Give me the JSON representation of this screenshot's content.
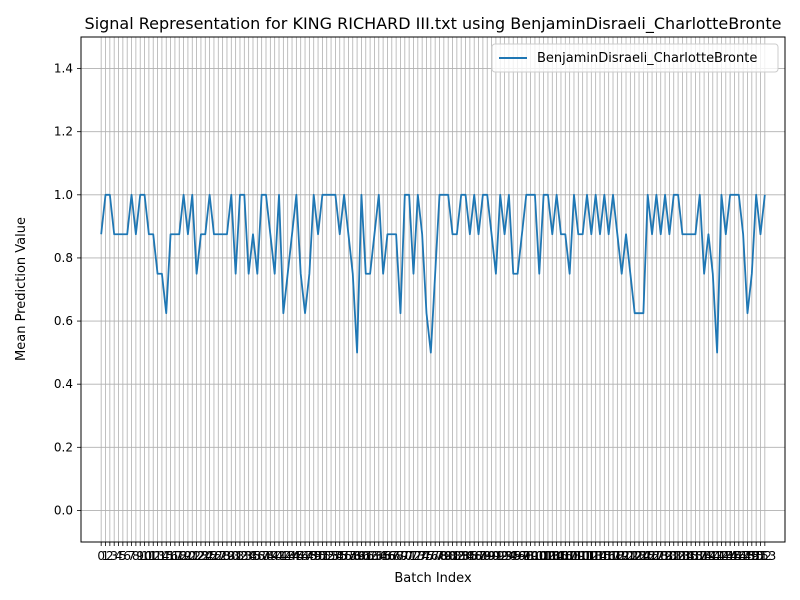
{
  "chart_data": {
    "type": "line",
    "title": "Signal Representation for KING RICHARD III.txt using BenjaminDisraeli_CharlotteBronte",
    "xlabel": "Batch Index",
    "ylabel": "Mean Prediction Value",
    "ylim": [
      -0.1,
      1.5
    ],
    "xlim": [
      -4.65,
      157.65
    ],
    "grid": true,
    "legend_position": "top-right",
    "y_ticks": [
      "0.0",
      "0.2",
      "0.4",
      "0.6",
      "0.8",
      "1.0",
      "1.2",
      "1.4"
    ],
    "y_tick_values": [
      0.0,
      0.2,
      0.4,
      0.6,
      0.8,
      1.0,
      1.2,
      1.4
    ],
    "line_color": "#1f77b4",
    "grid_color": "#b0b0b0",
    "series": [
      {
        "name": "BenjaminDisraeli_CharlotteBronte",
        "x": [
          0,
          1,
          2,
          3,
          4,
          5,
          6,
          7,
          8,
          9,
          10,
          11,
          12,
          13,
          14,
          15,
          16,
          17,
          18,
          19,
          20,
          21,
          22,
          23,
          24,
          25,
          26,
          27,
          28,
          29,
          30,
          31,
          32,
          33,
          34,
          35,
          36,
          37,
          38,
          39,
          40,
          41,
          42,
          43,
          44,
          45,
          46,
          47,
          48,
          49,
          50,
          51,
          52,
          53,
          54,
          55,
          56,
          57,
          58,
          59,
          60,
          61,
          62,
          63,
          64,
          65,
          66,
          67,
          68,
          69,
          70,
          71,
          72,
          73,
          74,
          75,
          76,
          77,
          78,
          79,
          80,
          81,
          82,
          83,
          84,
          85,
          86,
          87,
          88,
          89,
          90,
          91,
          92,
          93,
          94,
          95,
          96,
          97,
          98,
          99,
          100,
          101,
          102,
          103,
          104,
          105,
          106,
          107,
          108,
          109,
          110,
          111,
          112,
          113,
          114,
          115,
          116,
          117,
          118,
          119,
          120,
          121,
          122,
          123,
          124,
          125,
          126,
          127,
          128,
          129,
          130,
          131,
          132,
          133,
          134,
          135,
          136,
          137,
          138,
          139,
          140,
          141,
          142,
          143,
          144,
          145,
          146,
          147,
          148,
          149,
          150,
          151,
          152,
          153
        ],
        "y": [
          0.875,
          1.0,
          1.0,
          0.875,
          0.875,
          0.875,
          0.875,
          1.0,
          0.875,
          1.0,
          1.0,
          0.875,
          0.875,
          0.75,
          0.75,
          0.625,
          0.875,
          0.875,
          0.875,
          1.0,
          0.875,
          1.0,
          0.75,
          0.875,
          0.875,
          1.0,
          0.875,
          0.875,
          0.875,
          0.875,
          1.0,
          0.75,
          1.0,
          1.0,
          0.75,
          0.875,
          0.75,
          1.0,
          1.0,
          0.875,
          0.75,
          1.0,
          0.625,
          0.75,
          0.875,
          1.0,
          0.75,
          0.625,
          0.75,
          1.0,
          0.875,
          1.0,
          1.0,
          1.0,
          1.0,
          0.875,
          1.0,
          0.875,
          0.75,
          0.5,
          1.0,
          0.75,
          0.75,
          0.875,
          1.0,
          0.75,
          0.875,
          0.875,
          0.875,
          0.625,
          1.0,
          1.0,
          0.75,
          1.0,
          0.875,
          0.625,
          0.5,
          0.75,
          1.0,
          1.0,
          1.0,
          0.875,
          0.875,
          1.0,
          1.0,
          0.875,
          1.0,
          0.875,
          1.0,
          1.0,
          0.875,
          0.75,
          1.0,
          0.875,
          1.0,
          0.75,
          0.75,
          0.875,
          1.0,
          1.0,
          1.0,
          0.75,
          1.0,
          1.0,
          0.875,
          1.0,
          0.875,
          0.875,
          0.75,
          1.0,
          0.875,
          0.875,
          1.0,
          0.875,
          1.0,
          0.875,
          1.0,
          0.875,
          1.0,
          0.875,
          0.75,
          0.875,
          0.75,
          0.625,
          0.625,
          0.625,
          1.0,
          0.875,
          1.0,
          0.875,
          1.0,
          0.875,
          1.0,
          1.0,
          0.875,
          0.875,
          0.875,
          0.875,
          1.0,
          0.75,
          0.875,
          0.75,
          0.5,
          1.0,
          0.875,
          1.0,
          1.0,
          1.0,
          0.875,
          0.625,
          0.75,
          1.0,
          0.875,
          1.0
        ]
      }
    ],
    "x_tick_labels": [
      "0",
      "1",
      "2",
      "3",
      "4",
      "5",
      "6",
      "7",
      "8",
      "9",
      "10",
      "11",
      "12",
      "13",
      "14",
      "15",
      "16",
      "17",
      "18",
      "19",
      "20",
      "21",
      "22",
      "23",
      "24",
      "25",
      "26",
      "27",
      "28",
      "29",
      "30",
      "31",
      "32",
      "33",
      "34",
      "35",
      "36",
      "37",
      "38",
      "39",
      "40",
      "41",
      "42",
      "43",
      "44",
      "45",
      "46",
      "47",
      "48",
      "49",
      "50",
      "51",
      "52",
      "53",
      "54",
      "55",
      "56",
      "57",
      "58",
      "59",
      "60",
      "61",
      "62",
      "63",
      "64",
      "65",
      "66",
      "67",
      "68",
      "69",
      "70",
      "71",
      "72",
      "73",
      "74",
      "75",
      "76",
      "77",
      "78",
      "79",
      "80",
      "81",
      "82",
      "83",
      "84",
      "85",
      "86",
      "87",
      "88",
      "89",
      "90",
      "91",
      "92",
      "93",
      "94",
      "95",
      "96",
      "97",
      "98",
      "99",
      "100",
      "101",
      "102",
      "103",
      "104",
      "105",
      "106",
      "107",
      "108",
      "109",
      "110",
      "111",
      "112",
      "113",
      "114",
      "115",
      "116",
      "117",
      "118",
      "119",
      "120",
      "121",
      "122",
      "123",
      "124",
      "125",
      "126",
      "127",
      "128",
      "129",
      "130",
      "131",
      "132",
      "133",
      "134",
      "135",
      "136",
      "137",
      "138",
      "139",
      "140",
      "141",
      "142",
      "143",
      "144",
      "145",
      "146",
      "147",
      "148",
      "149",
      "150",
      "151",
      "152",
      "153"
    ]
  }
}
